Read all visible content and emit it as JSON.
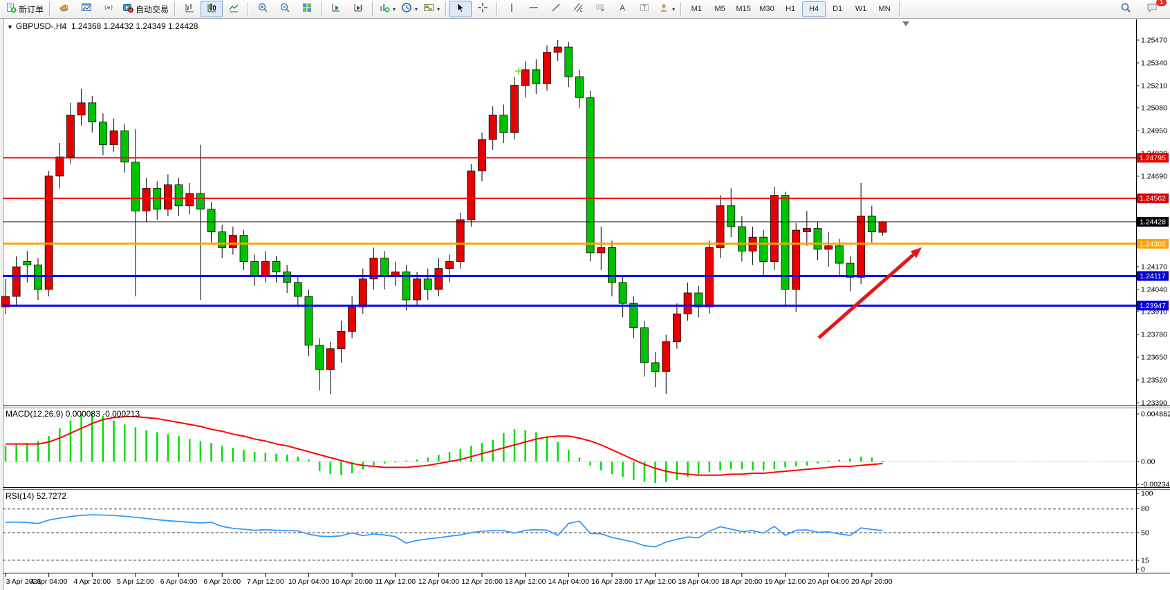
{
  "toolbar": {
    "new_order_label": "新订单",
    "autotrade_label": "自动交易",
    "timeframes": [
      "M1",
      "M5",
      "M15",
      "M30",
      "H1",
      "H4",
      "D1",
      "W1",
      "MN"
    ],
    "active_timeframe": "H4",
    "notification_count": "1"
  },
  "chart": {
    "title": "GBPUSD-,H4",
    "ohlc": "1.24368 1.24432 1.24349 1.24428",
    "collapse_icon": "▼"
  },
  "indicators": {
    "macd": {
      "label": "MACD(12,26,9)",
      "values_text": "0.000083 -0.000213"
    },
    "rsi": {
      "label": "RSI(14)",
      "value_text": "52.7272"
    }
  },
  "axis": {
    "price_ticks": [
      "1.25470",
      "1.25340",
      "1.25210",
      "1.25080",
      "1.24950",
      "1.24820",
      "1.24690",
      "1.24170",
      "1.24040",
      "1.23910",
      "1.23780",
      "1.23650",
      "1.23520",
      "1.23390"
    ],
    "macd_ticks": [
      [
        "0.004882",
        599
      ],
      [
        "0.00",
        668
      ],
      [
        "-0.002341",
        701
      ]
    ],
    "rsi_ticks": [
      [
        "100",
        714
      ],
      [
        "80",
        736
      ],
      [
        "50",
        771
      ],
      [
        "15",
        811
      ],
      [
        "0",
        824
      ]
    ]
  },
  "chart_data": [
    {
      "type": "candlestick",
      "title": "GBPUSD-,H4",
      "symbol": "GBPUSD-",
      "timeframe": "H4",
      "bull_color": "#e80000",
      "bear_color": "#00c300",
      "ylim": [
        1.2339,
        1.2547
      ],
      "x_labels": [
        "3 Apr 2023",
        "4 Apr 04:00",
        "4 Apr 20:00",
        "5 Apr 12:00",
        "6 Apr 04:00",
        "6 Apr 20:00",
        "7 Apr 12:00",
        "10 Apr 04:00",
        "10 Apr 20:00",
        "11 Apr 12:00",
        "12 Apr 04:00",
        "12 Apr 20:00",
        "13 Apr 12:00",
        "14 Apr 04:00",
        "16 Apr 23:00",
        "17 Apr 12:00",
        "18 Apr 04:00",
        "18 Apr 20:00",
        "19 Apr 12:00",
        "20 Apr 04:00",
        "20 Apr 20:00"
      ],
      "candles_ohlc": [
        [
          1.2394,
          1.241,
          1.239,
          1.24
        ],
        [
          1.24,
          1.2423,
          1.2395,
          1.2417
        ],
        [
          1.242,
          1.2426,
          1.2408,
          1.2418
        ],
        [
          1.2418,
          1.2422,
          1.2398,
          1.2404
        ],
        [
          1.2404,
          1.2472,
          1.24,
          1.2469
        ],
        [
          1.2469,
          1.2488,
          1.2462,
          1.248
        ],
        [
          1.248,
          1.2511,
          1.2476,
          1.2504
        ],
        [
          1.2504,
          1.2519,
          1.2498,
          1.2511
        ],
        [
          1.2511,
          1.2515,
          1.2494,
          1.25
        ],
        [
          1.25,
          1.2505,
          1.2481,
          1.2487
        ],
        [
          1.2487,
          1.2502,
          1.2483,
          1.2495
        ],
        [
          1.2495,
          1.2499,
          1.2471,
          1.2477
        ],
        [
          1.2477,
          1.2496,
          1.24,
          1.2449
        ],
        [
          1.2449,
          1.2468,
          1.2443,
          1.2462
        ],
        [
          1.2462,
          1.2466,
          1.2444,
          1.245
        ],
        [
          1.245,
          1.247,
          1.2446,
          1.2464
        ],
        [
          1.2464,
          1.2468,
          1.2446,
          1.2452
        ],
        [
          1.2452,
          1.2465,
          1.2447,
          1.2459
        ],
        [
          1.2459,
          1.2487,
          1.2398,
          1.245
        ],
        [
          1.245,
          1.2454,
          1.2431,
          1.2437
        ],
        [
          1.2437,
          1.2441,
          1.2422,
          1.2428
        ],
        [
          1.2428,
          1.244,
          1.2424,
          1.2435
        ],
        [
          1.2435,
          1.2438,
          1.2415,
          1.242
        ],
        [
          1.242,
          1.2424,
          1.2406,
          1.2412
        ],
        [
          1.2412,
          1.2426,
          1.2408,
          1.242
        ],
        [
          1.242,
          1.2423,
          1.2408,
          1.2414
        ],
        [
          1.2414,
          1.2418,
          1.2402,
          1.2408
        ],
        [
          1.2408,
          1.2412,
          1.2394,
          1.24
        ],
        [
          1.24,
          1.2404,
          1.2366,
          1.2372
        ],
        [
          1.2372,
          1.2376,
          1.2346,
          1.2358
        ],
        [
          1.2358,
          1.2374,
          1.2344,
          1.237
        ],
        [
          1.237,
          1.2386,
          1.2362,
          1.238
        ],
        [
          1.238,
          1.24,
          1.2376,
          1.2394
        ],
        [
          1.2394,
          1.2416,
          1.239,
          1.241
        ],
        [
          1.241,
          1.2428,
          1.2404,
          1.2422
        ],
        [
          1.2422,
          1.2426,
          1.2404,
          1.2412
        ],
        [
          1.2412,
          1.242,
          1.2406,
          1.2414
        ],
        [
          1.2414,
          1.2418,
          1.2392,
          1.2398
        ],
        [
          1.2398,
          1.2414,
          1.2394,
          1.241
        ],
        [
          1.241,
          1.2416,
          1.2398,
          1.2404
        ],
        [
          1.2404,
          1.2422,
          1.24,
          1.2416
        ],
        [
          1.2416,
          1.2424,
          1.2408,
          1.242
        ],
        [
          1.242,
          1.2448,
          1.2416,
          1.2444
        ],
        [
          1.2444,
          1.2476,
          1.244,
          1.2472
        ],
        [
          1.2472,
          1.2494,
          1.2466,
          1.249
        ],
        [
          1.249,
          1.2509,
          1.2484,
          1.2504
        ],
        [
          1.2504,
          1.251,
          1.2488,
          1.2494
        ],
        [
          1.2494,
          1.2526,
          1.249,
          1.2521
        ],
        [
          1.2521,
          1.2535,
          1.2514,
          1.253
        ],
        [
          1.253,
          1.2536,
          1.2516,
          1.2522
        ],
        [
          1.2522,
          1.2544,
          1.2518,
          1.254
        ],
        [
          1.254,
          1.2547,
          1.2535,
          1.2543
        ],
        [
          1.2543,
          1.2546,
          1.252,
          1.2526
        ],
        [
          1.2526,
          1.253,
          1.2508,
          1.2514
        ],
        [
          1.2514,
          1.2518,
          1.242,
          1.2425
        ],
        [
          1.2425,
          1.244,
          1.2415,
          1.2428
        ],
        [
          1.2428,
          1.2432,
          1.24,
          1.2408
        ],
        [
          1.2408,
          1.2412,
          1.2388,
          1.2396
        ],
        [
          1.2396,
          1.24,
          1.2376,
          1.2382
        ],
        [
          1.2382,
          1.2386,
          1.2354,
          1.2362
        ],
        [
          1.2362,
          1.2368,
          1.2348,
          1.2357
        ],
        [
          1.2357,
          1.2378,
          1.2344,
          1.2374
        ],
        [
          1.2374,
          1.2396,
          1.237,
          1.239
        ],
        [
          1.239,
          1.2408,
          1.2386,
          1.2402
        ],
        [
          1.2402,
          1.2406,
          1.2388,
          1.2394
        ],
        [
          1.2394,
          1.2432,
          1.239,
          1.2428
        ],
        [
          1.2428,
          1.2458,
          1.2422,
          1.2452
        ],
        [
          1.2452,
          1.2462,
          1.2434,
          1.244
        ],
        [
          1.244,
          1.2446,
          1.242,
          1.2426
        ],
        [
          1.2426,
          1.244,
          1.2418,
          1.2434
        ],
        [
          1.2434,
          1.2438,
          1.2412,
          1.242
        ],
        [
          1.242,
          1.2463,
          1.2415,
          1.2458
        ],
        [
          1.2458,
          1.246,
          1.2394,
          1.2404
        ],
        [
          1.2404,
          1.2442,
          1.2391,
          1.2438
        ],
        [
          1.2437,
          1.2449,
          1.2429,
          1.2439
        ],
        [
          1.2439,
          1.2443,
          1.2421,
          1.2427
        ],
        [
          1.2427,
          1.2437,
          1.2417,
          1.2429
        ],
        [
          1.2429,
          1.2433,
          1.2411,
          1.2419
        ],
        [
          1.2419,
          1.2423,
          1.2403,
          1.2411
        ],
        [
          1.2411,
          1.2465,
          1.2407,
          1.2446
        ],
        [
          1.2446,
          1.2452,
          1.2431,
          1.2437
        ],
        [
          1.24368,
          1.24432,
          1.24349,
          1.24428
        ]
      ],
      "levels": [
        {
          "price": 1.24795,
          "label": "1.24795",
          "color": "#ff0000",
          "tag": "#e00000",
          "width": 2
        },
        {
          "price": 1.24562,
          "label": "1.24562",
          "color": "#ff0000",
          "tag": "#e00000",
          "width": 2
        },
        {
          "price": 1.24428,
          "label": "1.24428",
          "color": "#000000",
          "tag": "#000000",
          "width": 1
        },
        {
          "price": 1.24302,
          "label": "1.24302",
          "color": "#ffa200",
          "tag": "#ffa200",
          "width": 3
        },
        {
          "price": 1.24117,
          "label": "1.24117",
          "color": "#0000ff",
          "tag": "#0000d8",
          "width": 3
        },
        {
          "price": 1.23947,
          "label": "1.23947",
          "color": "#0000ff",
          "tag": "#0000d8",
          "width": 3
        }
      ],
      "arrow": {
        "from": [
          1184,
          489
        ],
        "to": [
          1333,
          358
        ],
        "color": "#e01818"
      }
    },
    {
      "type": "bar",
      "title": "MACD(12,26,9)",
      "main_value": 8.3e-05,
      "signal_value": -0.000213,
      "hist_color": "#00dd00",
      "signal_color": "#ff0000",
      "ylim": [
        -0.002341,
        0.004882
      ],
      "values": [
        0.0016,
        0.00175,
        0.0019,
        0.0021,
        0.0026,
        0.0034,
        0.0042,
        0.0049,
        0.005,
        0.0047,
        0.0042,
        0.0038,
        0.0035,
        0.0032,
        0.003,
        0.0028,
        0.0026,
        0.0023,
        0.0021,
        0.0019,
        0.0016,
        0.0014,
        0.0012,
        0.001,
        0.0009,
        0.0008,
        0.0007,
        0.0005,
        0.0002,
        -0.001,
        -0.0013,
        -0.0014,
        -0.0012,
        -0.0008,
        -0.0004,
        -0.0002,
        -0.0001,
        0.0001,
        0.0002,
        0.0004,
        0.0007,
        0.001,
        0.0013,
        0.0016,
        0.0019,
        0.0022,
        0.0029,
        0.0033,
        0.0032,
        0.003,
        0.0026,
        0.002,
        0.0012,
        0.0004,
        -0.0004,
        -0.0009,
        -0.0013,
        -0.0016,
        -0.0019,
        -0.0021,
        -0.0022,
        -0.0021,
        -0.0019,
        -0.0016,
        -0.0013,
        -0.0011,
        -0.0009,
        -0.0008,
        -0.0008,
        -0.0009,
        -0.0009,
        -0.0008,
        -0.0006,
        -0.0005,
        -0.0004,
        -0.0002,
        0.0001,
        0.0002,
        0.0003,
        0.0005,
        0.0004,
        8.3e-05
      ],
      "signal": [
        0.0018,
        0.0018,
        0.0018,
        0.0018,
        0.002,
        0.0024,
        0.0029,
        0.0034,
        0.0039,
        0.0043,
        0.0045,
        0.0046,
        0.0046,
        0.0045,
        0.0044,
        0.0042,
        0.004,
        0.0038,
        0.0036,
        0.0033,
        0.0031,
        0.0028,
        0.0026,
        0.0023,
        0.0021,
        0.0018,
        0.0016,
        0.0013,
        0.001,
        0.0007,
        0.0004,
        0.0001,
        -0.0002,
        -0.0004,
        -0.0005,
        -0.0006,
        -0.0006,
        -0.0006,
        -0.0005,
        -0.0004,
        -0.0002,
        0.0,
        0.0002,
        0.0005,
        0.0008,
        0.0011,
        0.0014,
        0.0017,
        0.002,
        0.0023,
        0.0025,
        0.0026,
        0.0026,
        0.0024,
        0.0021,
        0.0017,
        0.0012,
        0.0007,
        0.0002,
        -0.0003,
        -0.0007,
        -0.001,
        -0.0012,
        -0.0013,
        -0.0014,
        -0.0014,
        -0.0014,
        -0.0013,
        -0.0013,
        -0.0012,
        -0.0012,
        -0.0011,
        -0.001,
        -0.0009,
        -0.0008,
        -0.0007,
        -0.0006,
        -0.0005,
        -0.0005,
        -0.0004,
        -0.0003,
        -0.000213
      ]
    },
    {
      "type": "line",
      "title": "RSI(14)",
      "last_value": 52.7272,
      "line_color": "#3399ff",
      "ylim": [
        0,
        100
      ],
      "level_lines": [
        80,
        50,
        15
      ],
      "values": [
        63,
        63.5,
        63,
        61.5,
        66,
        68.5,
        70.5,
        72,
        72.7,
        72.4,
        71.8,
        70.8,
        69.5,
        68,
        66.5,
        65.2,
        64.2,
        63.2,
        62.3,
        63.2,
        57.9,
        55.5,
        54.4,
        52.9,
        53.8,
        53,
        52.6,
        52.2,
        48,
        45.6,
        45,
        46,
        49.7,
        46.2,
        48.5,
        47.1,
        45,
        36.8,
        40,
        42.1,
        43.5,
        45.5,
        47.1,
        50,
        52,
        52.4,
        52.6,
        49.5,
        52.9,
        53.8,
        53.2,
        46.5,
        61.7,
        64.6,
        49,
        48.5,
        44,
        41,
        38,
        33.5,
        32,
        38,
        41.5,
        44.5,
        43.5,
        52,
        57.5,
        54.5,
        51.5,
        52.5,
        49.5,
        58,
        46.5,
        53,
        53.5,
        50.5,
        51,
        48.5,
        46.5,
        56,
        54,
        52.73
      ]
    }
  ]
}
